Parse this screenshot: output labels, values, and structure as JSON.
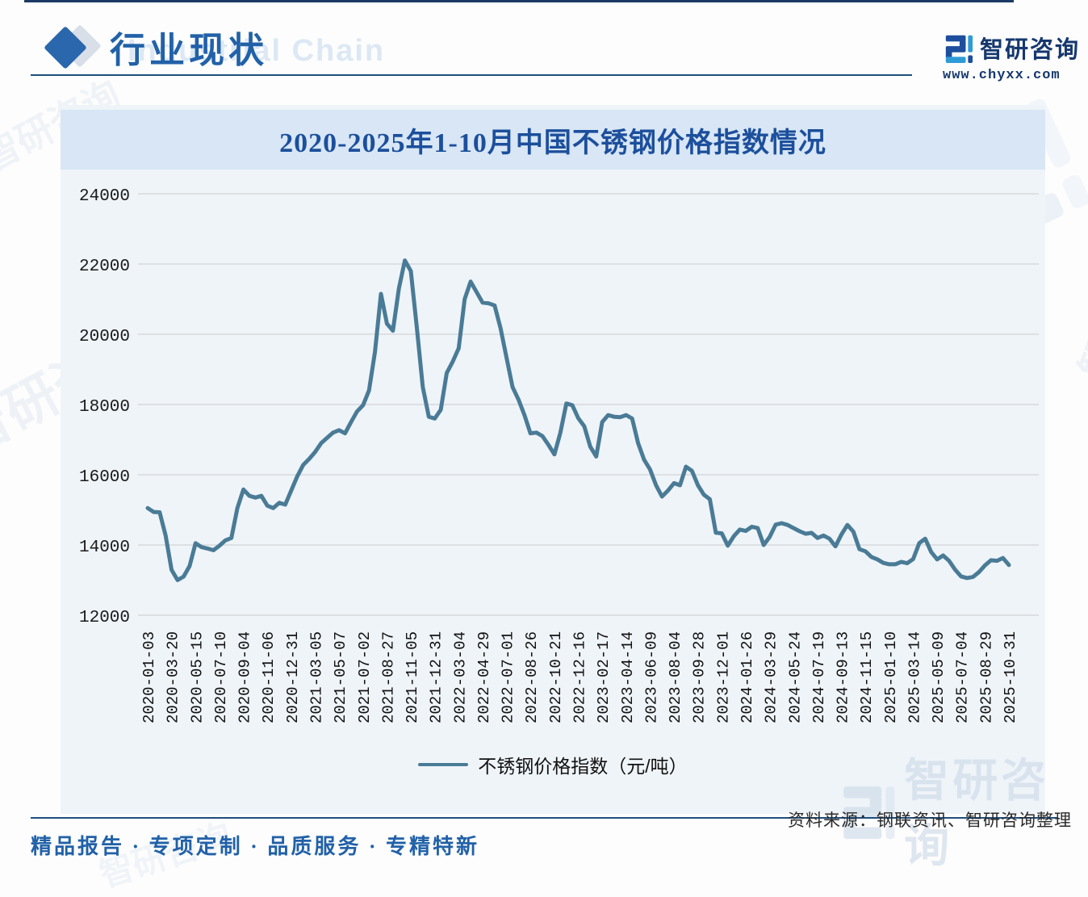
{
  "header": {
    "title": "行业现状",
    "watermark": "Industrial Chain"
  },
  "brand": {
    "name": "智研咨询",
    "url": "www.chyxx.com"
  },
  "chart_data": {
    "type": "line",
    "title": "2020-2025年1-10月中国不锈钢价格指数情况",
    "series_name": "不锈钢价格指数（元/吨）",
    "ylim": [
      12000,
      24000
    ],
    "y_ticks": [
      24000,
      22000,
      20000,
      18000,
      16000,
      14000,
      12000
    ],
    "grid": "horizontal",
    "legend_position": "bottom-center",
    "line_color": "#4a7b96",
    "x_labels": [
      "2020-01-03",
      "2020-03-20",
      "2020-05-15",
      "2020-07-10",
      "2020-09-04",
      "2020-11-06",
      "2020-12-31",
      "2021-03-05",
      "2021-05-07",
      "2021-07-02",
      "2021-08-27",
      "2021-11-05",
      "2021-12-31",
      "2022-03-04",
      "2022-04-29",
      "2022-07-01",
      "2022-08-26",
      "2022-10-21",
      "2022-12-16",
      "2023-02-17",
      "2023-04-14",
      "2023-06-09",
      "2023-08-04",
      "2023-09-28",
      "2023-12-01",
      "2024-01-26",
      "2024-03-29",
      "2024-05-24",
      "2024-07-19",
      "2024-09-13",
      "2024-11-15",
      "2025-01-10",
      "2025-03-14",
      "2025-05-09",
      "2025-07-04",
      "2025-08-29",
      "2025-10-31"
    ],
    "points_per_label_interval": 4,
    "values": [
      15050,
      14940,
      14930,
      14270,
      13290,
      13000,
      13100,
      13400,
      14050,
      13940,
      13900,
      13850,
      13980,
      14130,
      14200,
      15050,
      15580,
      15400,
      15350,
      15400,
      15120,
      15050,
      15200,
      15150,
      15550,
      15950,
      16280,
      16450,
      16650,
      16900,
      17050,
      17200,
      17270,
      17180,
      17500,
      17800,
      17980,
      18400,
      19500,
      21150,
      20300,
      20100,
      21300,
      22100,
      21800,
      20200,
      18500,
      17650,
      17600,
      17850,
      18900,
      19220,
      19600,
      21000,
      21500,
      21200,
      20900,
      20880,
      20820,
      20170,
      19330,
      18500,
      18140,
      17700,
      17180,
      17200,
      17100,
      16850,
      16580,
      17200,
      18030,
      17980,
      17610,
      17380,
      16800,
      16520,
      17500,
      17700,
      17650,
      17640,
      17700,
      17600,
      16900,
      16430,
      16150,
      15700,
      15380,
      15550,
      15760,
      15700,
      16230,
      16110,
      15700,
      15430,
      15300,
      14350,
      14330,
      13980,
      14250,
      14440,
      14400,
      14520,
      14480,
      14000,
      14230,
      14580,
      14620,
      14570,
      14480,
      14390,
      14320,
      14345,
      14200,
      14270,
      14180,
      13960,
      14300,
      14570,
      14380,
      13880,
      13820,
      13660,
      13590,
      13490,
      13450,
      13450,
      13520,
      13480,
      13600,
      14050,
      14180,
      13800,
      13590,
      13700,
      13550,
      13300,
      13105,
      13060,
      13090,
      13230,
      13420,
      13565,
      13550,
      13630,
      13430
    ]
  },
  "legend": {
    "label": "不锈钢价格指数（元/吨）"
  },
  "source": {
    "text": "资料来源：钢联资讯、智研咨询整理"
  },
  "footer": {
    "text": "精品报告 · 专项定制 · 品质服务 · 专精特新"
  },
  "watermark": {
    "brand": "智研咨询"
  },
  "colors": {
    "accent_blue": "#2161a8",
    "title_blue": "#1c4f9c",
    "rule_navy": "#1d4e7e",
    "line": "#4a7b96",
    "panel_bg": "#eff4f9",
    "title_band_bg": "#d8e6f5",
    "grid": "#d2d3d5"
  }
}
